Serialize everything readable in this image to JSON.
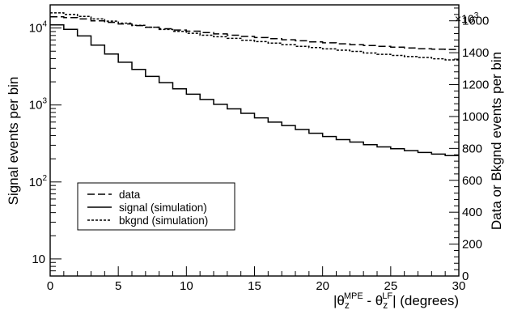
{
  "chart_data": {
    "type": "line",
    "title": "",
    "xlabel": "|θ_z^MPE - θ_z^LF|  (degrees)",
    "xlabel_parts": {
      "open": "|θ",
      "sub1": "z",
      "sup1": "MPE",
      "mid": " - θ",
      "sub2": "z",
      "sup2": "LF",
      "close": "|  (degrees)"
    },
    "ylabel_left": "Signal events per bin",
    "ylabel_right": "Data or Bkgnd events per bin",
    "right_axis_multiplier": "×10",
    "right_axis_multiplier_exp": "3",
    "xlim": [
      0,
      30
    ],
    "ylim_left": [
      6,
      20000
    ],
    "ylim_left_scale": "log",
    "ylim_right": [
      0,
      1700
    ],
    "ylim_right_units": "thousands",
    "x_ticks": [
      0,
      5,
      10,
      15,
      20,
      25,
      30
    ],
    "x_tick_labels": [
      "0",
      "5",
      "10",
      "15",
      "20",
      "25",
      "30"
    ],
    "y_left_ticks": [
      {
        "value": 10,
        "base": "10",
        "exp": ""
      },
      {
        "value": 100,
        "base": "10",
        "exp": "2"
      },
      {
        "value": 1000,
        "base": "10",
        "exp": "3"
      },
      {
        "value": 10000,
        "base": "10",
        "exp": "4"
      }
    ],
    "y_right_ticks": [
      0,
      200,
      400,
      600,
      800,
      1000,
      1200,
      1400,
      1600
    ],
    "y_right_tick_labels": [
      "0",
      "200",
      "400",
      "600",
      "800",
      "1000",
      "1200",
      "1400",
      "1600"
    ],
    "bin_edges": [
      0,
      1,
      2,
      3,
      4,
      5,
      6,
      7,
      8,
      9,
      10,
      11,
      12,
      13,
      14,
      15,
      16,
      17,
      18,
      19,
      20,
      21,
      22,
      23,
      24,
      25,
      26,
      27,
      28,
      29,
      30
    ],
    "series": [
      {
        "name": "data",
        "axis": "right",
        "style": "long-dash",
        "values": [
          1625,
          1620,
          1612,
          1600,
          1590,
          1580,
          1570,
          1560,
          1550,
          1542,
          1535,
          1526,
          1518,
          1510,
          1502,
          1495,
          1488,
          1481,
          1475,
          1468,
          1462,
          1456,
          1450,
          1445,
          1440,
          1435,
          1430,
          1425,
          1422,
          1420
        ]
      },
      {
        "name": "signal (simulation)",
        "axis": "left",
        "style": "solid",
        "values": [
          11000,
          9600,
          7900,
          6000,
          4600,
          3600,
          2900,
          2350,
          1950,
          1620,
          1380,
          1180,
          1020,
          890,
          780,
          680,
          600,
          540,
          480,
          430,
          390,
          355,
          330,
          305,
          285,
          270,
          255,
          242,
          230,
          220
        ]
      },
      {
        "name": "bkgnd (simulation)",
        "axis": "right",
        "style": "short-dash",
        "values": [
          1650,
          1640,
          1628,
          1612,
          1598,
          1585,
          1572,
          1560,
          1546,
          1534,
          1522,
          1510,
          1500,
          1490,
          1478,
          1470,
          1460,
          1450,
          1440,
          1432,
          1424,
          1416,
          1408,
          1398,
          1390,
          1383,
          1376,
          1370,
          1362,
          1355
        ]
      }
    ],
    "legend": {
      "placement": "lower-left",
      "entries": [
        "data",
        "signal (simulation)",
        "bkgnd (simulation)"
      ]
    },
    "grid": false
  }
}
